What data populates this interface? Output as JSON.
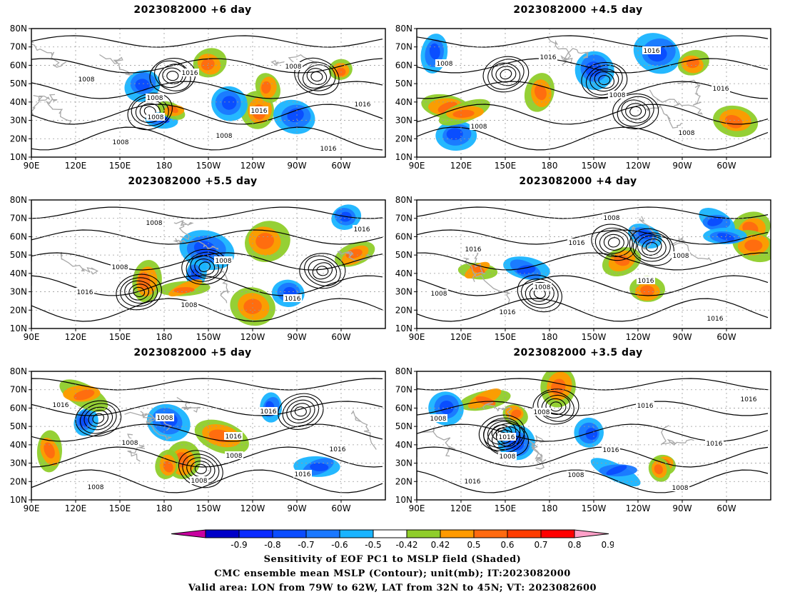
{
  "panels": [
    {
      "title": "2023082000 +6 day",
      "isobar_labels": [
        "1008",
        "1008",
        "1008",
        "1016",
        "1008",
        "1016",
        "1016",
        "1016",
        "1008",
        "1008"
      ],
      "seed": 11
    },
    {
      "title": "2023082000 +4.5 day",
      "isobar_labels": [
        "1016",
        "1016",
        "1008",
        "1016",
        "1008",
        "1008",
        "1008"
      ],
      "seed": 23
    },
    {
      "title": "2023082000 +5.5 day",
      "isobar_labels": [
        "1016",
        "1008",
        "1008",
        "1016",
        "1016",
        "1008",
        "1008"
      ],
      "seed": 37
    },
    {
      "title": "2023082000 +4 day",
      "isobar_labels": [
        "1016",
        "1016",
        "1016",
        "1016",
        "1016",
        "1008",
        "1008",
        "1008",
        "1008"
      ],
      "seed": 41
    },
    {
      "title": "2023082000 +5 day",
      "isobar_labels": [
        "1016",
        "1016",
        "1016",
        "1008",
        "1008",
        "1016",
        "1016",
        "1008",
        "1008",
        "1008"
      ],
      "seed": 53
    },
    {
      "title": "2023082000 +3.5 day",
      "isobar_labels": [
        "1016",
        "1016",
        "1008",
        "1016",
        "1016",
        "1016",
        "1008",
        "1016",
        "1008",
        "1008",
        "1008"
      ],
      "seed": 67
    }
  ],
  "lat_ticks": [
    "80N",
    "70N",
    "60N",
    "50N",
    "40N",
    "30N",
    "20N",
    "10N"
  ],
  "lon_ticks": [
    "90E",
    "120E",
    "150E",
    "180",
    "150W",
    "120W",
    "90W",
    "60W"
  ],
  "colorbar": {
    "labels": [
      "-0.9",
      "-0.8",
      "-0.7",
      "-0.6",
      "-0.5",
      "-0.42",
      "0.42",
      "0.5",
      "0.6",
      "0.7",
      "0.8",
      "0.9"
    ],
    "colors": [
      "#0000c8",
      "#0a2aff",
      "#0a4cff",
      "#1a78ff",
      "#19b4ff",
      "#ffffff",
      "#8fcd2a",
      "#ff9a00",
      "#ff6a10",
      "#ff3c00",
      "#ff0000"
    ],
    "under_color": "#c800a0",
    "over_color": "#ffa0c8"
  },
  "captions": {
    "line1": "Sensitivity of EOF PC1 to MSLP field (Shaded)",
    "line2": "CMC ensemble mean MSLP (Contour); unit(mb); IT:2023082000",
    "line3": "Valid area: LON from 79W to 62W, LAT from 32N to 45N; VT: 2023082600"
  }
}
